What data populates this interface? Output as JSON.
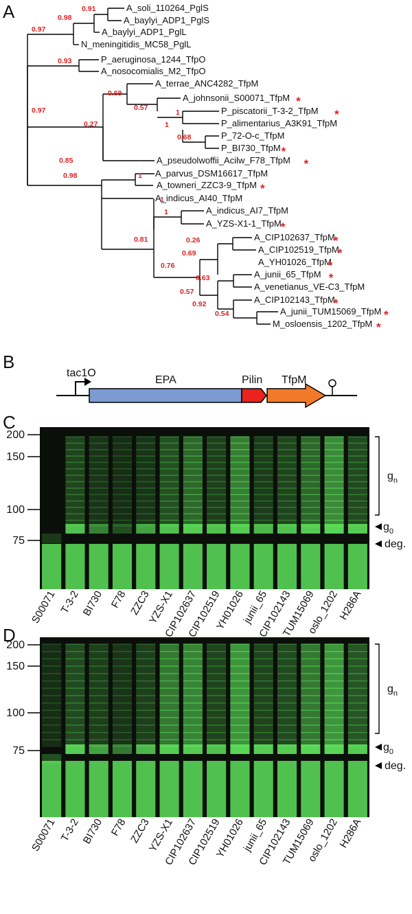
{
  "panels": {
    "a": "A",
    "b": "B",
    "c": "C",
    "d": "D"
  },
  "tree": {
    "leaves": [
      {
        "name": "A_soli_110264_PglS",
        "star": false
      },
      {
        "name": "A_baylyi_ADP1_PglS",
        "star": false
      },
      {
        "name": "A_baylyi_ADP1_PglL",
        "star": false
      },
      {
        "name": "N_meningitidis_MC58_PglL",
        "star": false
      },
      {
        "name": "P_aeruginosa_1244_TfpO",
        "star": false
      },
      {
        "name": "A_nosocomialis_M2_TfpO",
        "star": false
      },
      {
        "name": "A_terrae_ANC4282_TfpM",
        "star": false
      },
      {
        "name": "A_johnsonii_S00071_TfpM",
        "star": true
      },
      {
        "name": "P_piscatorii_T-3-2_TfpM",
        "star": true
      },
      {
        "name": "P_alimentarius_A3K91_TfpM",
        "star": false
      },
      {
        "name": "P_72-O-c_TfpM",
        "star": false
      },
      {
        "name": "P_BI730_TfpM",
        "star": true
      },
      {
        "name": "A_pseudolwoffii_Acilw_F78_TfpM",
        "star": true
      },
      {
        "name": "A_parvus_DSM16617_TfpM",
        "star": false
      },
      {
        "name": "A_towneri_ZZC3-9_TfpM",
        "star": true
      },
      {
        "name": "A_indicus_AI40_TfpM",
        "star": false
      },
      {
        "name": "A_indicus_AI7_TfpM",
        "star": false
      },
      {
        "name": "A_YZS-X1-1_TfpM",
        "star": true
      },
      {
        "name": "A_CIP102637_TfpM",
        "star": true
      },
      {
        "name": "A_CIP102519_TfpM",
        "star": true
      },
      {
        "name": "A_YH01026_TfpM",
        "star": true
      },
      {
        "name": "A_junii_65_TfpM",
        "star": true
      },
      {
        "name": "A_venetianus_VE-C3_TfpM",
        "star": false
      },
      {
        "name": "A_CIP102143_TfpM",
        "star": true
      },
      {
        "name": "A_junii_TUM15069_TfpM",
        "star": true
      },
      {
        "name": "M_osloensis_1202_TfpM",
        "star": true
      }
    ],
    "bootstrap": [
      "0.91",
      "0.98",
      "0.97",
      "0.93",
      "0.97",
      "0.69",
      "0.57",
      "1",
      "0.27",
      "0.68",
      "1",
      "0.85",
      "1",
      "0.98",
      "1",
      "1",
      "0.26",
      "0.69",
      "0.81",
      "0.76",
      "0.63",
      "0.57",
      "0.92",
      "0.54"
    ],
    "star_symbol": "*"
  },
  "construct": {
    "promoter": "tac1O",
    "epa": "EPA",
    "pilin": "Pilin",
    "tfpm": "TfpM",
    "colors": {
      "epa": "#7b9bd2",
      "pilin": "#e8241c",
      "tfpm": "#f07a2a"
    }
  },
  "gels": {
    "mw_markers": [
      "200",
      "150",
      "100",
      "75"
    ],
    "lanes": [
      "S00071",
      "T-3-2",
      "BI730",
      "F78",
      "ZZC3",
      "YZS-X1",
      "CIP102637",
      "CIP102519",
      "YH01026",
      "junii_65",
      "CIP102143",
      "TUM15069",
      "oslo_1202",
      "H286A"
    ],
    "labels": {
      "gn_base": "g",
      "gn_sub": "n",
      "g0_base": "g",
      "g0_sub": "0",
      "deg": "deg."
    },
    "fluor_color": "#5de05a"
  }
}
